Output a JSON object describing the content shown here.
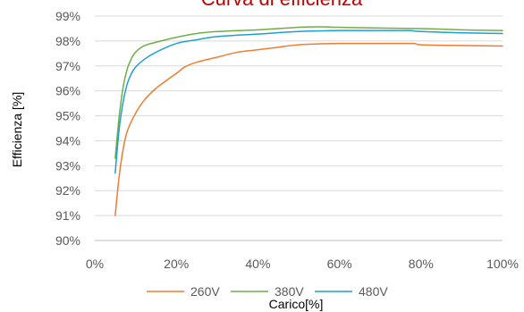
{
  "chart_data": {
    "type": "line",
    "title": "Curva di efficienza",
    "xlabel": "Carico[%]",
    "ylabel": "Efficienza [%]",
    "xlim": [
      0,
      100
    ],
    "ylim": [
      90,
      99
    ],
    "x_ticks": [
      0,
      20,
      40,
      60,
      80,
      100
    ],
    "x_tick_labels": [
      "0%",
      "20%",
      "40%",
      "60%",
      "80%",
      "100%"
    ],
    "y_ticks": [
      90,
      91,
      92,
      93,
      94,
      95,
      96,
      97,
      98,
      99
    ],
    "y_tick_labels": [
      "90%",
      "91%",
      "92%",
      "93%",
      "94%",
      "95%",
      "96%",
      "97%",
      "98%",
      "99%"
    ],
    "grid": "horizontal",
    "legend": "bottom",
    "title_color": "#c00000",
    "series": [
      {
        "name": "260V",
        "color": "#ed7d31",
        "points": [
          [
            5,
            91.0
          ],
          [
            6,
            92.6
          ],
          [
            7,
            93.7
          ],
          [
            8,
            94.4
          ],
          [
            10,
            95.1
          ],
          [
            12,
            95.6
          ],
          [
            15,
            96.1
          ],
          [
            20,
            96.7
          ],
          [
            22,
            96.95
          ],
          [
            25,
            97.15
          ],
          [
            30,
            97.35
          ],
          [
            35,
            97.55
          ],
          [
            40,
            97.65
          ],
          [
            45,
            97.75
          ],
          [
            50,
            97.85
          ],
          [
            60,
            97.9
          ],
          [
            70,
            97.9
          ],
          [
            78,
            97.9
          ],
          [
            80,
            97.85
          ],
          [
            90,
            97.82
          ],
          [
            100,
            97.8
          ]
        ]
      },
      {
        "name": "380V",
        "color": "#70ad47",
        "points": [
          [
            5,
            93.3
          ],
          [
            6,
            95.0
          ],
          [
            7,
            96.2
          ],
          [
            8,
            96.9
          ],
          [
            9,
            97.3
          ],
          [
            10,
            97.55
          ],
          [
            12,
            97.8
          ],
          [
            15,
            97.95
          ],
          [
            20,
            98.15
          ],
          [
            25,
            98.3
          ],
          [
            30,
            98.38
          ],
          [
            40,
            98.45
          ],
          [
            50,
            98.55
          ],
          [
            55,
            98.57
          ],
          [
            60,
            98.55
          ],
          [
            70,
            98.52
          ],
          [
            80,
            98.5
          ],
          [
            90,
            98.45
          ],
          [
            100,
            98.42
          ]
        ]
      },
      {
        "name": "480V",
        "color": "#1f9fcf",
        "points": [
          [
            5,
            92.7
          ],
          [
            6,
            94.5
          ],
          [
            7,
            95.6
          ],
          [
            8,
            96.3
          ],
          [
            9,
            96.7
          ],
          [
            10,
            96.95
          ],
          [
            12,
            97.25
          ],
          [
            15,
            97.55
          ],
          [
            20,
            97.9
          ],
          [
            25,
            98.05
          ],
          [
            30,
            98.18
          ],
          [
            40,
            98.28
          ],
          [
            50,
            98.38
          ],
          [
            60,
            98.42
          ],
          [
            70,
            98.42
          ],
          [
            77,
            98.42
          ],
          [
            80,
            98.38
          ],
          [
            90,
            98.33
          ],
          [
            100,
            98.3
          ]
        ]
      }
    ]
  }
}
